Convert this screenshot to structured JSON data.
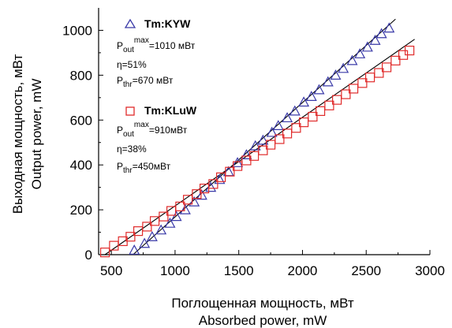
{
  "chart_data": {
    "type": "scatter",
    "xlabel": [
      "Поглощенная мощность, мВт",
      "Absorbed power, mW"
    ],
    "ylabel": [
      "Выходная мощность, мВт",
      "Output power, mW"
    ],
    "xlim": [
      400,
      3000
    ],
    "ylim": [
      0,
      1100
    ],
    "xticks": [
      500,
      1000,
      1500,
      2000,
      2500,
      3000
    ],
    "yticks": [
      0,
      200,
      400,
      600,
      800,
      1000
    ],
    "grid": false,
    "legend_position": "top-left",
    "series": [
      {
        "name": "Tm:KYW",
        "marker": "triangle",
        "color": "#3a3aa8",
        "fit_line": {
          "x": [
            670,
            2730
          ],
          "y": [
            0,
            1050
          ]
        },
        "points": [
          [
            680,
            20
          ],
          [
            760,
            50
          ],
          [
            820,
            80
          ],
          [
            890,
            110
          ],
          [
            960,
            140
          ],
          [
            1010,
            170
          ],
          [
            1080,
            200
          ],
          [
            1150,
            235
          ],
          [
            1210,
            265
          ],
          [
            1280,
            300
          ],
          [
            1350,
            335
          ],
          [
            1420,
            370
          ],
          [
            1490,
            410
          ],
          [
            1560,
            445
          ],
          [
            1630,
            485
          ],
          [
            1690,
            510
          ],
          [
            1760,
            545
          ],
          [
            1810,
            575
          ],
          [
            1880,
            610
          ],
          [
            1940,
            640
          ],
          [
            2010,
            680
          ],
          [
            2070,
            705
          ],
          [
            2130,
            735
          ],
          [
            2200,
            770
          ],
          [
            2260,
            800
          ],
          [
            2320,
            830
          ],
          [
            2390,
            865
          ],
          [
            2450,
            895
          ],
          [
            2510,
            925
          ],
          [
            2570,
            955
          ],
          [
            2620,
            985
          ],
          [
            2680,
            1010
          ]
        ]
      },
      {
        "name": "Tm:KLuW",
        "marker": "square",
        "color": "#e02b2b",
        "fit_line": {
          "x": [
            450,
            2880
          ],
          "y": [
            0,
            960
          ]
        },
        "points": [
          [
            450,
            10
          ],
          [
            520,
            40
          ],
          [
            590,
            60
          ],
          [
            650,
            80
          ],
          [
            710,
            105
          ],
          [
            780,
            125
          ],
          [
            840,
            150
          ],
          [
            910,
            170
          ],
          [
            970,
            195
          ],
          [
            1040,
            215
          ],
          [
            1100,
            245
          ],
          [
            1170,
            270
          ],
          [
            1230,
            295
          ],
          [
            1300,
            315
          ],
          [
            1360,
            345
          ],
          [
            1430,
            370
          ],
          [
            1490,
            395
          ],
          [
            1560,
            420
          ],
          [
            1620,
            440
          ],
          [
            1690,
            465
          ],
          [
            1750,
            490
          ],
          [
            1820,
            515
          ],
          [
            1880,
            540
          ],
          [
            1950,
            565
          ],
          [
            2010,
            590
          ],
          [
            2080,
            615
          ],
          [
            2140,
            640
          ],
          [
            2210,
            665
          ],
          [
            2270,
            690
          ],
          [
            2340,
            715
          ],
          [
            2400,
            740
          ],
          [
            2470,
            765
          ],
          [
            2530,
            790
          ],
          [
            2600,
            810
          ],
          [
            2660,
            835
          ],
          [
            2730,
            865
          ],
          [
            2790,
            890
          ],
          [
            2840,
            910
          ]
        ]
      }
    ]
  },
  "legend": {
    "kyw": {
      "title": "Tm:KYW",
      "pout_sym": "P",
      "pout_sub": "out",
      "pout_sup": "max",
      "pout_val": "=1010 мВт",
      "eta": "η=51%",
      "pthr_sym": "P",
      "pthr_sub": "thr",
      "pthr_val": "=670 мВт"
    },
    "kluw": {
      "title": "Tm:KLuW",
      "pout_sym": "P",
      "pout_sub": "out",
      "pout_sup": "max",
      "pout_val": "=910мВт",
      "eta": "η=38%",
      "pthr_sym": "P",
      "pthr_sub": "thr",
      "pthr_val": "=450мВт"
    }
  }
}
